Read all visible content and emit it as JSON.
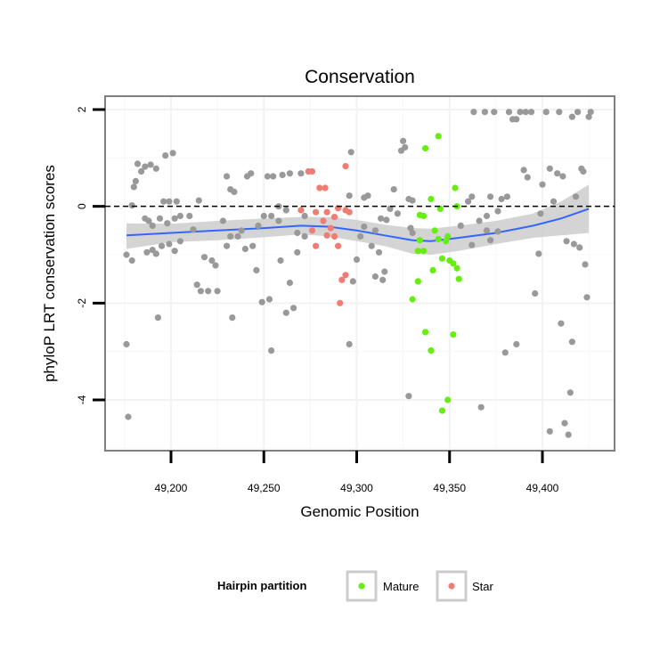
{
  "chart_data": {
    "type": "scatter",
    "title": "Conservation",
    "xlabel": "Genomic Position",
    "ylabel": "phyloP LRT conservation scores",
    "xlim": [
      49168,
      49430
    ],
    "ylim": [
      -5.05,
      2.25
    ],
    "x_ticks": [
      {
        "value": 49200,
        "label": "49,200"
      },
      {
        "value": 49250,
        "label": "49,250"
      },
      {
        "value": 49300,
        "label": "49,300"
      },
      {
        "value": 49350,
        "label": "49,350"
      },
      {
        "value": 49400,
        "label": "49,400"
      }
    ],
    "y_ticks": [
      {
        "value": 2,
        "label": "2"
      },
      {
        "value": 0,
        "label": "0"
      },
      {
        "value": -2,
        "label": "-2"
      },
      {
        "value": -4,
        "label": "-4"
      }
    ],
    "reference_line": {
      "y": 0,
      "style": "dashed"
    },
    "grid": true,
    "legend": {
      "title": "Hairpin partition",
      "position": "bottom",
      "entries": [
        {
          "label": "Mature",
          "color": "#66ee11"
        },
        {
          "label": "Star",
          "color": "#f07c73"
        }
      ]
    },
    "colors": {
      "other": "#999999",
      "mature": "#66ee11",
      "star": "#f07c73",
      "smooth": "#3366ff",
      "band": "#cccccc"
    },
    "series": [
      {
        "name": "Mature",
        "points": [
          [
            49337,
            1.2
          ],
          [
            49344,
            1.45
          ],
          [
            49340,
            0.15
          ],
          [
            49353,
            0.38
          ],
          [
            49354,
            0.0
          ],
          [
            49345,
            -0.05
          ],
          [
            49334,
            -0.18
          ],
          [
            49336,
            -0.2
          ],
          [
            49342,
            -0.5
          ],
          [
            49349,
            -0.62
          ],
          [
            49344,
            -0.68
          ],
          [
            49334,
            -0.7
          ],
          [
            49348,
            -0.72
          ],
          [
            49333,
            -0.92
          ],
          [
            49336,
            -0.92
          ],
          [
            49346,
            -1.08
          ],
          [
            49352,
            -1.18
          ],
          [
            49350,
            -1.12
          ],
          [
            49354,
            -1.28
          ],
          [
            49341,
            -1.32
          ],
          [
            49333,
            -1.55
          ],
          [
            49355,
            -1.5
          ],
          [
            49330,
            -1.92
          ],
          [
            49337,
            -2.6
          ],
          [
            49352,
            -2.65
          ],
          [
            49340,
            -2.98
          ],
          [
            49349,
            -4.0
          ],
          [
            49346,
            -4.22
          ]
        ]
      },
      {
        "name": "Star",
        "points": [
          [
            49274,
            0.72
          ],
          [
            49276,
            0.72
          ],
          [
            49294,
            0.83
          ],
          [
            49280,
            0.38
          ],
          [
            49283,
            0.38
          ],
          [
            49270,
            -0.08
          ],
          [
            49278,
            -0.12
          ],
          [
            49284,
            -0.12
          ],
          [
            49290,
            -0.04
          ],
          [
            49294,
            -0.08
          ],
          [
            49296,
            -0.12
          ],
          [
            49282,
            -0.3
          ],
          [
            49288,
            -0.22
          ],
          [
            49286,
            -0.45
          ],
          [
            49276,
            -0.5
          ],
          [
            49284,
            -0.6
          ],
          [
            49288,
            -0.62
          ],
          [
            49278,
            -0.82
          ],
          [
            49290,
            -0.82
          ],
          [
            49294,
            -1.42
          ],
          [
            49292,
            -1.52
          ],
          [
            49291,
            -2.0
          ]
        ]
      },
      {
        "name": "",
        "points": [
          [
            49176,
            -2.85
          ],
          [
            49177,
            -4.35
          ],
          [
            49176,
            -1.0
          ],
          [
            49179,
            -1.12
          ],
          [
            49179,
            0.02
          ],
          [
            49180,
            0.4
          ],
          [
            49181,
            0.52
          ],
          [
            49182,
            0.88
          ],
          [
            49184,
            0.72
          ],
          [
            49186,
            0.82
          ],
          [
            49189,
            0.86
          ],
          [
            49192,
            0.78
          ],
          [
            49197,
            1.05
          ],
          [
            49201,
            1.1
          ],
          [
            49186,
            -0.25
          ],
          [
            49188,
            -0.3
          ],
          [
            49190,
            -0.4
          ],
          [
            49194,
            -0.25
          ],
          [
            49198,
            -0.35
          ],
          [
            49202,
            -0.25
          ],
          [
            49205,
            -0.2
          ],
          [
            49196,
            0.1
          ],
          [
            49199,
            0.1
          ],
          [
            49203,
            0.1
          ],
          [
            49187,
            -0.95
          ],
          [
            49190,
            -0.9
          ],
          [
            49192,
            -0.98
          ],
          [
            49195,
            -0.82
          ],
          [
            49199,
            -0.78
          ],
          [
            49202,
            -0.92
          ],
          [
            49205,
            -0.72
          ],
          [
            49193,
            -2.3
          ],
          [
            49210,
            -0.2
          ],
          [
            49212,
            -0.48
          ],
          [
            49214,
            -1.62
          ],
          [
            49215,
            0.12
          ],
          [
            49216,
            -1.75
          ],
          [
            49218,
            -1.05
          ],
          [
            49220,
            -1.75
          ],
          [
            49222,
            -1.12
          ],
          [
            49224,
            -1.22
          ],
          [
            49225,
            -1.75
          ],
          [
            49228,
            -0.3
          ],
          [
            49230,
            0.62
          ],
          [
            49232,
            0.35
          ],
          [
            49234,
            0.3
          ],
          [
            49232,
            -0.62
          ],
          [
            49230,
            -0.82
          ],
          [
            49233,
            -2.3
          ],
          [
            49236,
            -0.62
          ],
          [
            49238,
            -0.5
          ],
          [
            49240,
            -0.88
          ],
          [
            49241,
            0.62
          ],
          [
            49243,
            0.68
          ],
          [
            49244,
            -0.82
          ],
          [
            49246,
            -1.32
          ],
          [
            49247,
            -0.4
          ],
          [
            49249,
            -1.98
          ],
          [
            49250,
            -0.2
          ],
          [
            49252,
            0.62
          ],
          [
            49253,
            -1.92
          ],
          [
            49254,
            -2.98
          ],
          [
            49255,
            0.62
          ],
          [
            49258,
            -0.3
          ],
          [
            49259,
            -1.12
          ],
          [
            49260,
            0.65
          ],
          [
            49262,
            -2.2
          ],
          [
            49264,
            -1.58
          ],
          [
            49264,
            0.68
          ],
          [
            49266,
            -2.1
          ],
          [
            49268,
            -0.95
          ],
          [
            49270,
            0.68
          ],
          [
            49272,
            -0.2
          ],
          [
            49258,
            0.0
          ],
          [
            49254,
            -0.2
          ],
          [
            49262,
            -0.08
          ],
          [
            49268,
            -0.55
          ],
          [
            49272,
            -0.62
          ],
          [
            49296,
            0.22
          ],
          [
            49297,
            1.12
          ],
          [
            49298,
            -1.55
          ],
          [
            49300,
            -1.1
          ],
          [
            49302,
            -0.62
          ],
          [
            49304,
            0.18
          ],
          [
            49306,
            0.22
          ],
          [
            49308,
            -0.82
          ],
          [
            49310,
            -1.45
          ],
          [
            49312,
            -0.95
          ],
          [
            49314,
            -1.52
          ],
          [
            49315,
            -1.35
          ],
          [
            49296,
            -2.85
          ],
          [
            49304,
            -0.42
          ],
          [
            49310,
            -0.5
          ],
          [
            49313,
            -0.25
          ],
          [
            49316,
            -0.28
          ],
          [
            49318,
            -0.05
          ],
          [
            49320,
            0.35
          ],
          [
            49322,
            -0.15
          ],
          [
            49324,
            1.15
          ],
          [
            49325,
            1.35
          ],
          [
            49326,
            1.22
          ],
          [
            49328,
            0.15
          ],
          [
            49329,
            -0.45
          ],
          [
            49330,
            -0.55
          ],
          [
            49328,
            -3.92
          ],
          [
            49330,
            0.12
          ],
          [
            49360,
            0.1
          ],
          [
            49362,
            0.2
          ],
          [
            49363,
            1.95
          ],
          [
            49366,
            -0.3
          ],
          [
            49367,
            -4.15
          ],
          [
            49369,
            1.95
          ],
          [
            49370,
            -0.5
          ],
          [
            49372,
            0.2
          ],
          [
            49372,
            -0.7
          ],
          [
            49374,
            1.95
          ],
          [
            49376,
            -0.1
          ],
          [
            49378,
            0.15
          ],
          [
            49380,
            -3.02
          ],
          [
            49381,
            0.2
          ],
          [
            49382,
            1.95
          ],
          [
            49384,
            1.8
          ],
          [
            49386,
            1.8
          ],
          [
            49386,
            -2.85
          ],
          [
            49388,
            1.95
          ],
          [
            49390,
            0.75
          ],
          [
            49391,
            1.95
          ],
          [
            49392,
            0.6
          ],
          [
            49394,
            1.95
          ],
          [
            49396,
            -1.8
          ],
          [
            49398,
            -0.98
          ],
          [
            49399,
            -0.15
          ],
          [
            49400,
            0.45
          ],
          [
            49402,
            1.95
          ],
          [
            49404,
            0.78
          ],
          [
            49404,
            -4.65
          ],
          [
            49406,
            0.1
          ],
          [
            49408,
            0.68
          ],
          [
            49409,
            1.95
          ],
          [
            49410,
            -2.42
          ],
          [
            49411,
            0.62
          ],
          [
            49412,
            -4.48
          ],
          [
            49413,
            -0.72
          ],
          [
            49414,
            -4.72
          ],
          [
            49415,
            -3.85
          ],
          [
            49416,
            -2.8
          ],
          [
            49416,
            1.85
          ],
          [
            49417,
            -0.78
          ],
          [
            49418,
            0.2
          ],
          [
            49419,
            1.95
          ],
          [
            49420,
            -0.85
          ],
          [
            49421,
            0.78
          ],
          [
            49422,
            0.72
          ],
          [
            49423,
            -1.2
          ],
          [
            49424,
            -1.88
          ],
          [
            49425,
            1.85
          ],
          [
            49426,
            1.95
          ],
          [
            49356,
            -0.4
          ],
          [
            49362,
            -0.8
          ],
          [
            49370,
            -0.2
          ],
          [
            49376,
            -0.52
          ]
        ]
      }
    ],
    "smooth": {
      "x": [
        49176,
        49200,
        49225,
        49250,
        49270,
        49285,
        49300,
        49315,
        49330,
        49340,
        49355,
        49375,
        49395,
        49410,
        49425
      ],
      "y": [
        -0.6,
        -0.55,
        -0.5,
        -0.45,
        -0.4,
        -0.42,
        -0.5,
        -0.6,
        -0.7,
        -0.72,
        -0.65,
        -0.55,
        -0.4,
        -0.25,
        -0.05
      ],
      "lower": [
        -0.88,
        -0.74,
        -0.7,
        -0.64,
        -0.58,
        -0.62,
        -0.72,
        -0.82,
        -0.98,
        -1.0,
        -0.92,
        -0.78,
        -0.65,
        -0.6,
        -0.55
      ],
      "upper": [
        -0.35,
        -0.36,
        -0.3,
        -0.25,
        -0.22,
        -0.22,
        -0.28,
        -0.38,
        -0.45,
        -0.46,
        -0.4,
        -0.3,
        -0.15,
        0.1,
        0.45
      ]
    }
  }
}
